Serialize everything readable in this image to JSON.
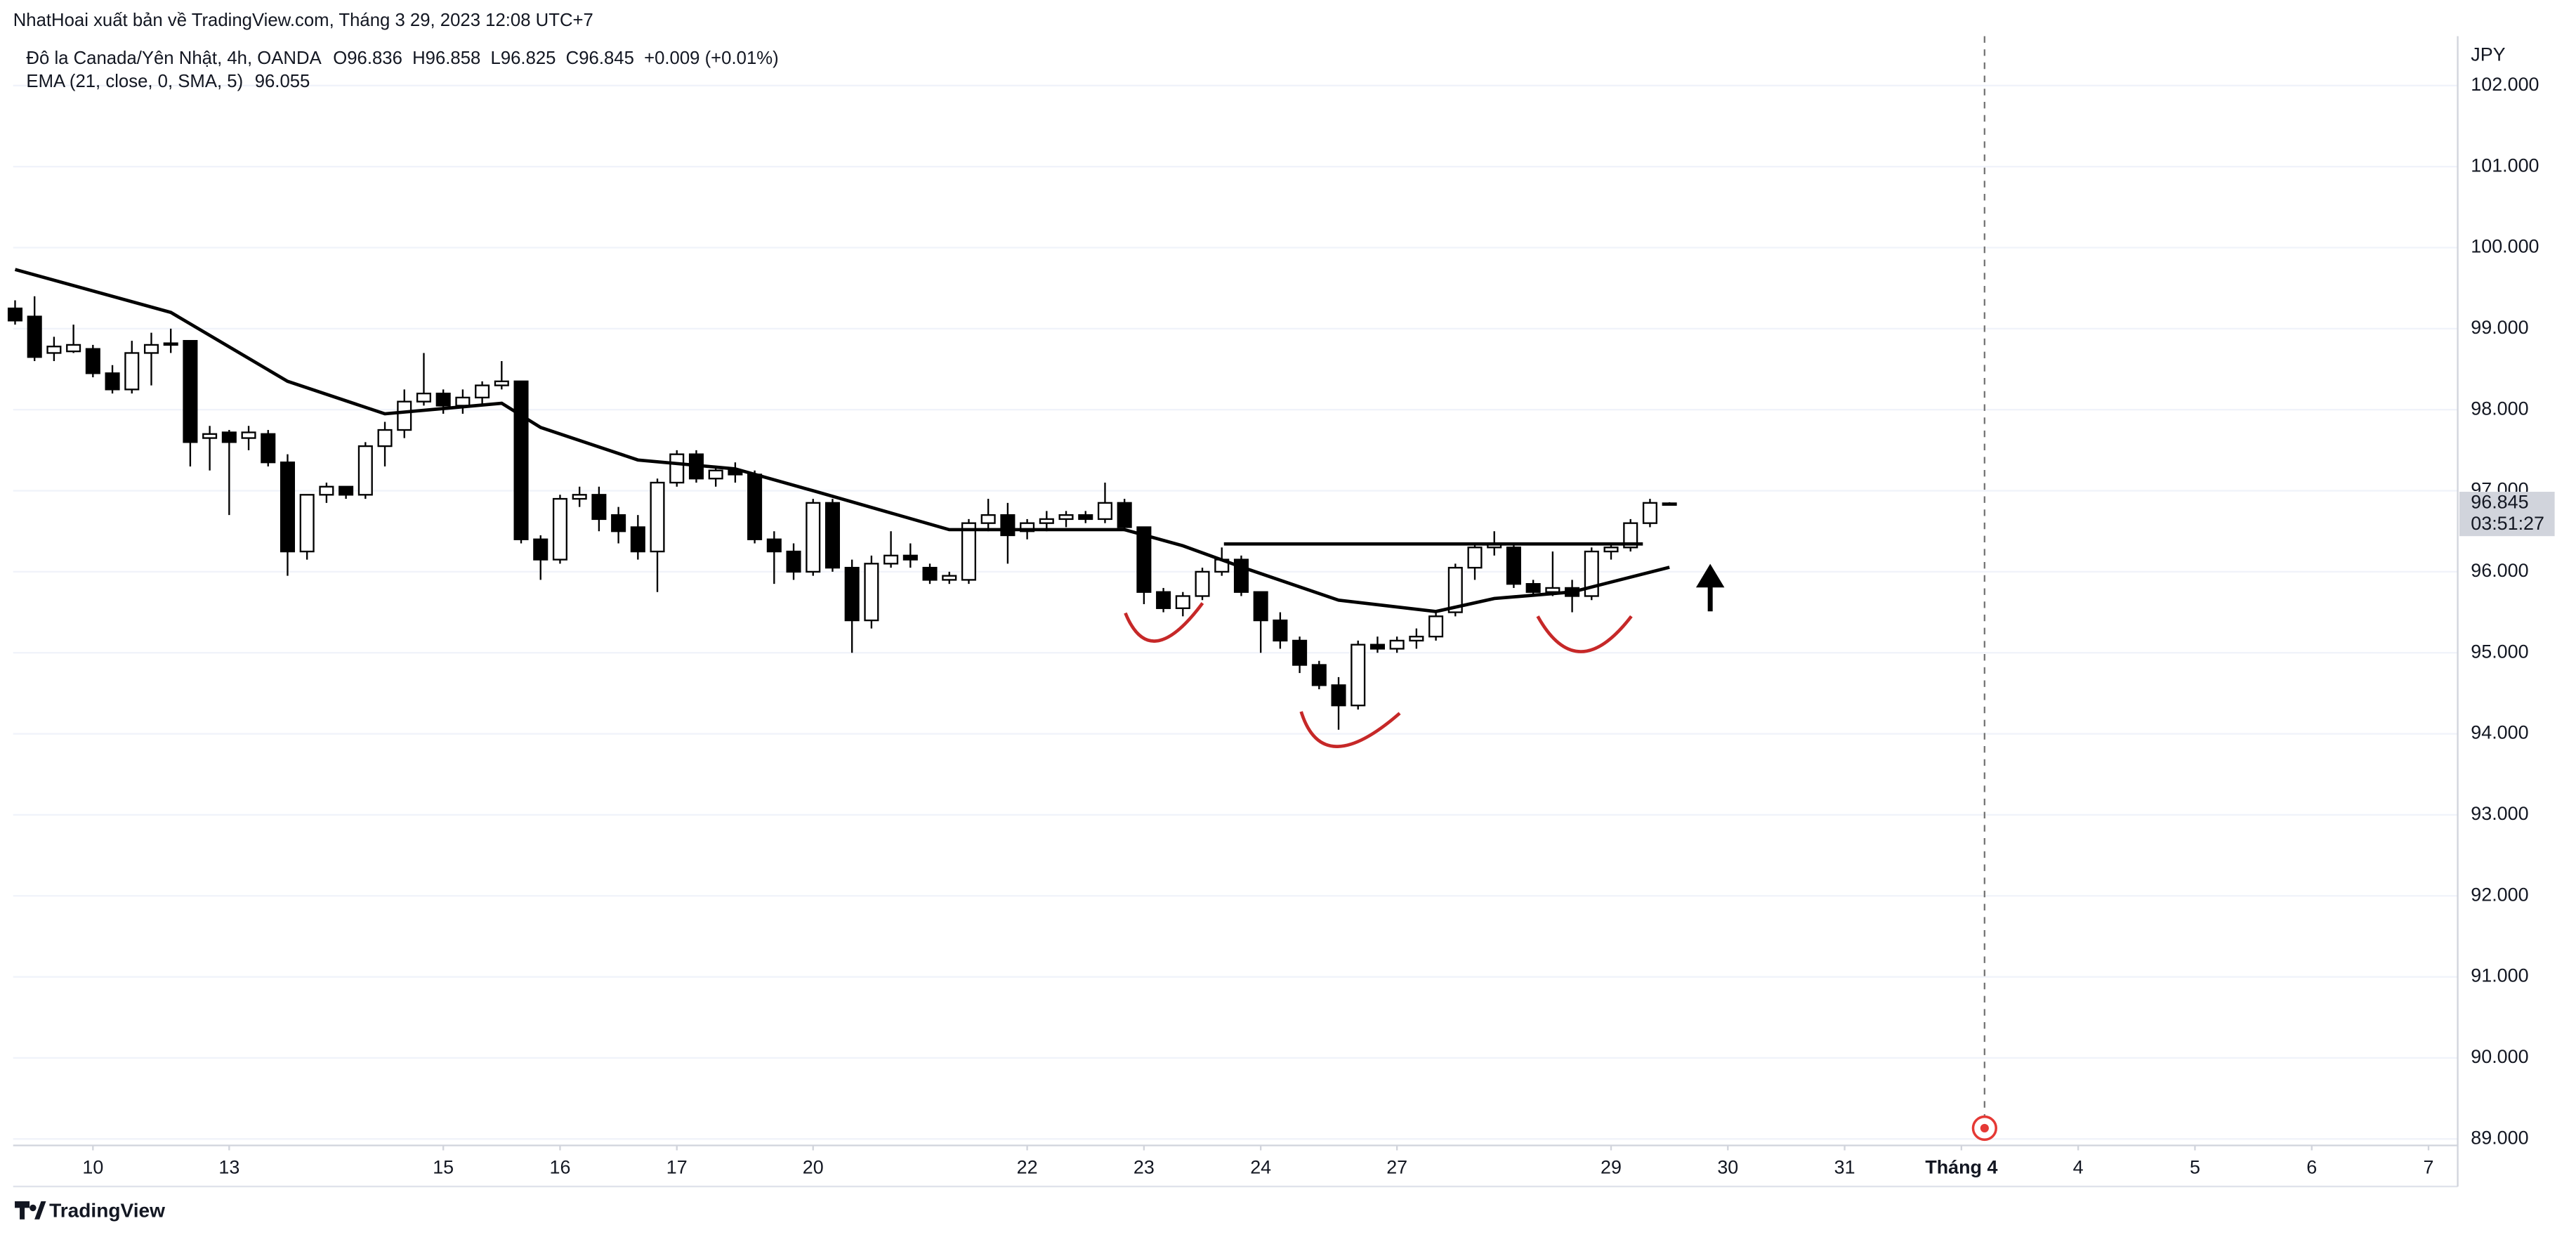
{
  "publisher": "NhatHoai xuất bản về TradingView.com, Tháng 3 29, 2023 12:08 UTC+7",
  "brand": "TradingView",
  "chart_data": {
    "type": "candlestick",
    "title": "Đô la Canada/Yên Nhật, 4h, OANDA",
    "ohlc_labels": [
      "O96.836",
      "H96.858",
      "L96.825",
      "C96.845"
    ],
    "change_label": "+0.009 (+0.01%)",
    "open": [
      99.25,
      99.15,
      98.7,
      98.72,
      98.75,
      98.45,
      98.25,
      98.7,
      98.8,
      98.85,
      97.65,
      97.72,
      97.65,
      97.7,
      97.35,
      96.25,
      96.95,
      97.05,
      96.95,
      97.55,
      97.75,
      98.1,
      98.2,
      98.05,
      98.15,
      98.3,
      98.35,
      96.4,
      96.15,
      96.9,
      96.95,
      96.7,
      96.55,
      96.25,
      97.1,
      97.45,
      97.15,
      97.25,
      97.2,
      96.4,
      96.25,
      96.0,
      96.85,
      96.05,
      95.4,
      96.1,
      96.2,
      96.05,
      95.9,
      95.9,
      96.6,
      96.7,
      96.5,
      96.6,
      96.65,
      96.7,
      96.65,
      96.85,
      96.55,
      95.75,
      95.55,
      95.7,
      96.0,
      96.15,
      95.75,
      95.4,
      95.15,
      94.85,
      94.6,
      94.35,
      95.1,
      95.05,
      95.15,
      95.2,
      95.5,
      96.05,
      96.3,
      96.3,
      95.85,
      95.75,
      95.8,
      95.7,
      96.25,
      96.3,
      96.6,
      96.836
    ],
    "high": [
      99.35,
      99.4,
      98.9,
      99.05,
      98.8,
      98.55,
      98.85,
      98.95,
      99.0,
      98.85,
      97.8,
      97.75,
      97.8,
      97.75,
      97.45,
      96.95,
      97.1,
      97.05,
      97.6,
      97.85,
      98.25,
      98.7,
      98.25,
      98.25,
      98.35,
      98.6,
      98.35,
      96.45,
      96.95,
      97.05,
      97.05,
      96.8,
      96.7,
      97.15,
      97.5,
      97.5,
      97.3,
      97.35,
      97.25,
      96.5,
      96.35,
      96.9,
      96.9,
      96.15,
      96.2,
      96.5,
      96.35,
      96.1,
      96.0,
      96.65,
      96.9,
      96.85,
      96.65,
      96.75,
      96.75,
      96.75,
      97.1,
      96.9,
      96.55,
      95.8,
      95.75,
      96.05,
      96.3,
      96.2,
      95.75,
      95.5,
      95.2,
      94.9,
      94.7,
      95.15,
      95.2,
      95.2,
      95.3,
      95.5,
      96.1,
      96.35,
      96.5,
      96.35,
      95.9,
      96.25,
      95.9,
      96.3,
      96.35,
      96.65,
      96.9,
      96.858
    ],
    "low": [
      99.05,
      98.6,
      98.6,
      98.7,
      98.4,
      98.2,
      98.2,
      98.3,
      98.7,
      97.3,
      97.25,
      96.7,
      97.5,
      97.3,
      95.95,
      96.15,
      96.85,
      96.9,
      96.9,
      97.3,
      97.65,
      98.05,
      97.95,
      97.95,
      98.05,
      98.25,
      96.35,
      95.9,
      96.1,
      96.8,
      96.5,
      96.35,
      96.15,
      95.75,
      97.05,
      97.1,
      97.05,
      97.1,
      96.35,
      95.85,
      95.9,
      95.95,
      96.0,
      95.0,
      95.3,
      96.05,
      96.05,
      95.85,
      95.85,
      95.85,
      96.5,
      96.1,
      96.4,
      96.5,
      96.55,
      96.6,
      96.6,
      96.5,
      95.6,
      95.5,
      95.45,
      95.65,
      95.95,
      95.7,
      95.0,
      95.05,
      94.75,
      94.55,
      94.05,
      94.3,
      95.0,
      95.0,
      95.05,
      95.15,
      95.45,
      95.9,
      96.2,
      95.8,
      95.7,
      95.7,
      95.5,
      95.65,
      96.15,
      96.25,
      96.55,
      96.825
    ],
    "close": [
      99.1,
      98.65,
      98.78,
      98.8,
      98.45,
      98.25,
      98.7,
      98.8,
      98.82,
      97.6,
      97.7,
      97.6,
      97.72,
      97.35,
      96.25,
      96.95,
      97.05,
      96.95,
      97.55,
      97.75,
      98.1,
      98.2,
      98.05,
      98.15,
      98.3,
      98.35,
      96.4,
      96.15,
      96.9,
      96.95,
      96.65,
      96.5,
      96.25,
      97.1,
      97.45,
      97.15,
      97.25,
      97.2,
      96.4,
      96.25,
      96.0,
      96.85,
      96.05,
      95.4,
      96.1,
      96.2,
      96.15,
      95.9,
      95.95,
      96.6,
      96.7,
      96.45,
      96.6,
      96.65,
      96.7,
      96.65,
      96.85,
      96.55,
      95.75,
      95.55,
      95.7,
      96.0,
      96.15,
      95.75,
      95.4,
      95.15,
      94.85,
      94.6,
      94.35,
      95.1,
      95.05,
      95.15,
      95.2,
      95.45,
      96.05,
      96.3,
      96.35,
      95.85,
      95.75,
      95.8,
      95.7,
      96.25,
      96.3,
      96.6,
      96.85,
      96.845
    ],
    "up_color": "#ffffff",
    "down_color": "#000000",
    "ema": {
      "name": "EMA (21, close, 0, SMA, 5)",
      "value_label": "96.055",
      "color": "#000000",
      "x": [
        0,
        8,
        14,
        19,
        25,
        27,
        32,
        37,
        41,
        48,
        57,
        60,
        63,
        68,
        73,
        76,
        80,
        85
      ],
      "values": [
        99.73,
        99.2,
        98.35,
        97.95,
        98.08,
        97.78,
        97.38,
        97.27,
        97.0,
        96.52,
        96.52,
        96.32,
        96.06,
        95.65,
        95.51,
        95.67,
        95.75,
        96.055
      ]
    },
    "currency": "JPY",
    "last_price_label": "96.845",
    "countdown": "03:51:27",
    "xlim": [
      -0.1,
      125.5
    ],
    "xticks": [
      {
        "value": 4,
        "label": "10"
      },
      {
        "value": 11,
        "label": "13"
      },
      {
        "value": 22,
        "label": "15"
      },
      {
        "value": 28,
        "label": "16"
      },
      {
        "value": 34,
        "label": "17"
      },
      {
        "value": 41,
        "label": "20"
      },
      {
        "value": 52,
        "label": "22"
      },
      {
        "value": 58,
        "label": "23"
      },
      {
        "value": 64,
        "label": "24"
      },
      {
        "value": 71,
        "label": "27"
      },
      {
        "value": 82,
        "label": "29"
      },
      {
        "value": 88,
        "label": "30"
      },
      {
        "value": 94,
        "label": "31"
      },
      {
        "value": 100,
        "label": "Tháng 4"
      },
      {
        "value": 106,
        "label": "4"
      },
      {
        "value": 112,
        "label": "5"
      },
      {
        "value": 118,
        "label": "6"
      },
      {
        "value": 124,
        "label": "7"
      }
    ],
    "ylim": [
      88.92,
      102.61
    ],
    "yticks": [
      {
        "value": 89,
        "label": "89.000"
      },
      {
        "value": 90,
        "label": "90.000"
      },
      {
        "value": 91,
        "label": "91.000"
      },
      {
        "value": 92,
        "label": "92.000"
      },
      {
        "value": 93,
        "label": "93.000"
      },
      {
        "value": 94,
        "label": "94.000"
      },
      {
        "value": 95,
        "label": "95.000"
      },
      {
        "value": 96,
        "label": "96.000"
      },
      {
        "value": 97,
        "label": "97.000"
      },
      {
        "value": 98,
        "label": "98.000"
      },
      {
        "value": 99,
        "label": "99.000"
      },
      {
        "value": 100,
        "label": "100.000"
      },
      {
        "value": 101,
        "label": "101.000"
      },
      {
        "value": 102,
        "label": "102.000"
      }
    ],
    "grid": true
  }
}
